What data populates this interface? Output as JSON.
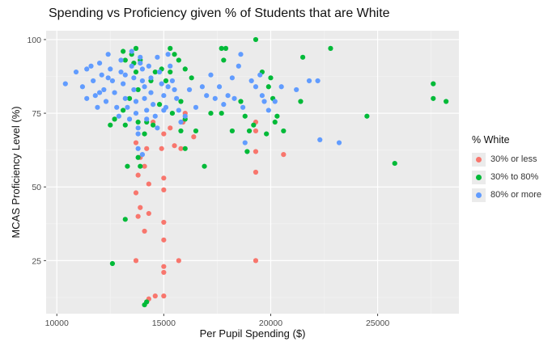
{
  "chart_data": {
    "type": "scatter",
    "title": "Spending vs Proficiency given % of Students that are White",
    "xlabel": "Per Pupil Spending ($)",
    "ylabel": "MCAS Proficiency Level (%)",
    "xlim": [
      9500,
      28800
    ],
    "ylim": [
      7,
      103
    ],
    "x_ticks": [
      10000,
      15000,
      20000,
      25000
    ],
    "x_tick_labels": [
      "10000",
      "15000",
      "20000",
      "25000"
    ],
    "y_ticks": [
      25,
      50,
      75,
      100
    ],
    "y_tick_labels": [
      "25",
      "50",
      "75",
      "100"
    ],
    "grid": true,
    "panel_background": "#ebebeb",
    "legend": {
      "title": "% White",
      "position": "right"
    },
    "series": [
      {
        "name": "30% or less",
        "color": "#f8766d",
        "points": [
          [
            13700,
            65
          ],
          [
            14200,
            63
          ],
          [
            13900,
            60
          ],
          [
            14100,
            57
          ],
          [
            13800,
            54
          ],
          [
            14300,
            51
          ],
          [
            13700,
            48
          ],
          [
            13900,
            43
          ],
          [
            14300,
            41
          ],
          [
            13800,
            40
          ],
          [
            14100,
            35
          ],
          [
            13700,
            25
          ],
          [
            15000,
            38
          ],
          [
            15000,
            32
          ],
          [
            15000,
            23
          ],
          [
            15000,
            21
          ],
          [
            14600,
            13
          ],
          [
            14300,
            12
          ],
          [
            14200,
            11
          ],
          [
            15000,
            13
          ],
          [
            15000,
            53
          ],
          [
            15000,
            49
          ],
          [
            14900,
            63
          ],
          [
            15000,
            68
          ],
          [
            15500,
            64
          ],
          [
            15800,
            63
          ],
          [
            15900,
            72
          ],
          [
            16000,
            75
          ],
          [
            15700,
            25
          ],
          [
            19300,
            72
          ],
          [
            19300,
            69
          ],
          [
            19300,
            62
          ],
          [
            19300,
            55
          ],
          [
            19300,
            25
          ],
          [
            20600,
            61
          ],
          [
            14500,
            72
          ],
          [
            15300,
            70
          ],
          [
            16400,
            67
          ]
        ]
      },
      {
        "name": "30% to 80%",
        "color": "#00ba38",
        "points": [
          [
            12600,
            24
          ],
          [
            13200,
            39
          ],
          [
            14100,
            10
          ],
          [
            14200,
            11
          ],
          [
            13800,
            60
          ],
          [
            13900,
            57
          ],
          [
            13300,
            57
          ],
          [
            14100,
            68
          ],
          [
            14200,
            72
          ],
          [
            13800,
            72
          ],
          [
            14500,
            71
          ],
          [
            13200,
            71
          ],
          [
            12500,
            71
          ],
          [
            12700,
            73
          ],
          [
            13100,
            76
          ],
          [
            13400,
            80
          ],
          [
            13800,
            83
          ],
          [
            14400,
            86
          ],
          [
            13700,
            89
          ],
          [
            13200,
            93
          ],
          [
            13500,
            95
          ],
          [
            13700,
            97
          ],
          [
            13100,
            96
          ],
          [
            13900,
            93
          ],
          [
            14600,
            89
          ],
          [
            15100,
            86
          ],
          [
            15300,
            89
          ],
          [
            15500,
            95
          ],
          [
            15700,
            93
          ],
          [
            15300,
            97
          ],
          [
            14900,
            90
          ],
          [
            16000,
            90
          ],
          [
            16300,
            87
          ],
          [
            15800,
            79
          ],
          [
            15400,
            75
          ],
          [
            16000,
            73
          ],
          [
            16500,
            69
          ],
          [
            15800,
            69
          ],
          [
            16000,
            63
          ],
          [
            16900,
            57
          ],
          [
            17200,
            75
          ],
          [
            17700,
            75
          ],
          [
            17800,
            93
          ],
          [
            17700,
            97
          ],
          [
            17900,
            97
          ],
          [
            18200,
            69
          ],
          [
            18600,
            79
          ],
          [
            18800,
            74
          ],
          [
            19000,
            69
          ],
          [
            19200,
            71
          ],
          [
            19300,
            100
          ],
          [
            19600,
            89
          ],
          [
            19900,
            84
          ],
          [
            20000,
            87
          ],
          [
            20100,
            80
          ],
          [
            20300,
            74
          ],
          [
            20200,
            72
          ],
          [
            20600,
            69
          ],
          [
            19800,
            68
          ],
          [
            18900,
            62
          ],
          [
            21400,
            79
          ],
          [
            21500,
            94
          ],
          [
            22800,
            97
          ],
          [
            24500,
            74
          ],
          [
            25800,
            58
          ],
          [
            27600,
            85
          ],
          [
            27600,
            80
          ],
          [
            28200,
            79
          ],
          [
            13600,
            92
          ],
          [
            14800,
            78
          ]
        ]
      },
      {
        "name": "80% or more",
        "color": "#619cff",
        "points": [
          [
            10400,
            85
          ],
          [
            10900,
            89
          ],
          [
            11200,
            84
          ],
          [
            11400,
            80
          ],
          [
            11400,
            90
          ],
          [
            11600,
            91
          ],
          [
            11700,
            86
          ],
          [
            11800,
            81
          ],
          [
            11900,
            77
          ],
          [
            12000,
            92
          ],
          [
            12100,
            88
          ],
          [
            12200,
            83
          ],
          [
            12300,
            79
          ],
          [
            12400,
            95
          ],
          [
            12500,
            90
          ],
          [
            12600,
            86
          ],
          [
            12700,
            82
          ],
          [
            12800,
            77
          ],
          [
            12900,
            74
          ],
          [
            13000,
            93
          ],
          [
            13000,
            89
          ],
          [
            13100,
            85
          ],
          [
            13200,
            80
          ],
          [
            13300,
            77
          ],
          [
            13400,
            73
          ],
          [
            13500,
            96
          ],
          [
            13500,
            91
          ],
          [
            13600,
            87
          ],
          [
            13600,
            83
          ],
          [
            13700,
            79
          ],
          [
            13700,
            75
          ],
          [
            13800,
            70
          ],
          [
            13800,
            68
          ],
          [
            13900,
            94
          ],
          [
            14000,
            90
          ],
          [
            14000,
            86
          ],
          [
            14100,
            84
          ],
          [
            14100,
            80
          ],
          [
            14200,
            76
          ],
          [
            14200,
            73
          ],
          [
            14300,
            91
          ],
          [
            14400,
            87
          ],
          [
            14400,
            82
          ],
          [
            14500,
            78
          ],
          [
            14600,
            74
          ],
          [
            14700,
            94
          ],
          [
            14800,
            89
          ],
          [
            14900,
            85
          ],
          [
            15000,
            81
          ],
          [
            15100,
            77
          ],
          [
            15200,
            95
          ],
          [
            15300,
            91
          ],
          [
            15400,
            86
          ],
          [
            15500,
            83
          ],
          [
            15600,
            80
          ],
          [
            15700,
            76
          ],
          [
            15800,
            72
          ],
          [
            13800,
            63
          ],
          [
            14000,
            61
          ],
          [
            15200,
            84
          ],
          [
            16200,
            83
          ],
          [
            16500,
            77
          ],
          [
            16800,
            84
          ],
          [
            17000,
            81
          ],
          [
            17200,
            88
          ],
          [
            17400,
            80
          ],
          [
            17600,
            84
          ],
          [
            17800,
            78
          ],
          [
            18000,
            81
          ],
          [
            18200,
            87
          ],
          [
            18300,
            80
          ],
          [
            18500,
            91
          ],
          [
            18600,
            95
          ],
          [
            18700,
            77
          ],
          [
            18800,
            65
          ],
          [
            19100,
            86
          ],
          [
            19300,
            84
          ],
          [
            19500,
            88
          ],
          [
            19600,
            81
          ],
          [
            19700,
            79
          ],
          [
            19900,
            76
          ],
          [
            20200,
            79
          ],
          [
            20500,
            84
          ],
          [
            21200,
            83
          ],
          [
            21800,
            86
          ],
          [
            22200,
            86
          ],
          [
            22300,
            66
          ],
          [
            23200,
            65
          ],
          [
            12000,
            82
          ],
          [
            12400,
            87
          ],
          [
            13200,
            88
          ],
          [
            13900,
            92
          ],
          [
            14700,
            70
          ],
          [
            16000,
            74
          ],
          [
            15000,
            76
          ]
        ]
      }
    ]
  }
}
